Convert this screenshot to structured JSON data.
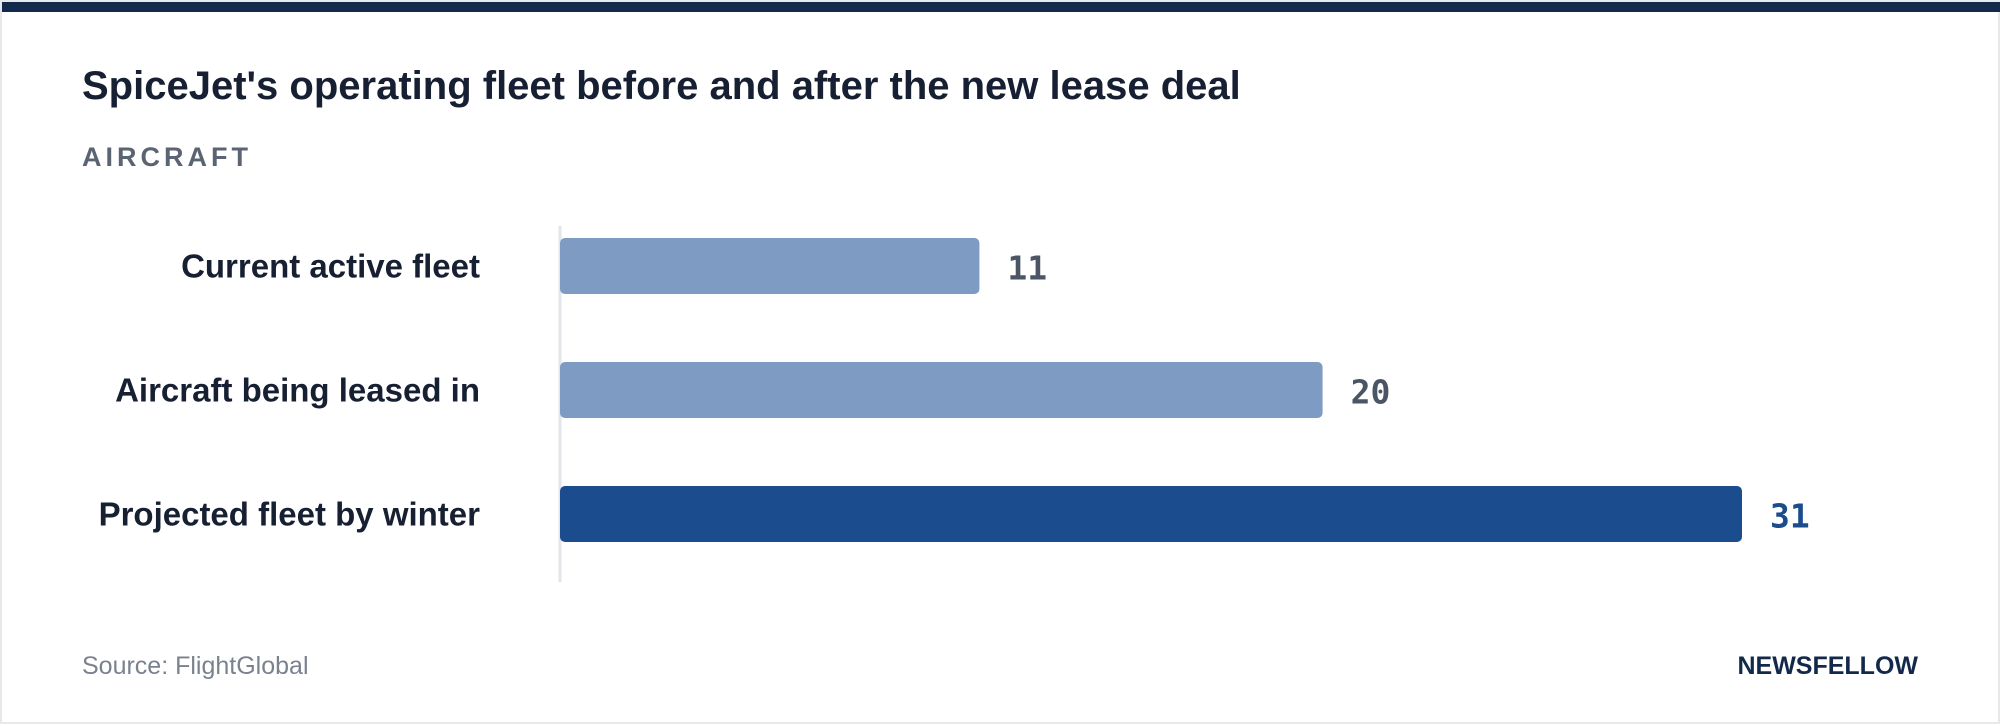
{
  "title": "SpiceJet's operating fleet before and after the new lease deal",
  "subtitle": "AIRCRAFT",
  "source": "Source: FlightGlobal",
  "brand": "NEWSFELLOW",
  "colors": {
    "bar_default": "#7d9bc3",
    "bar_highlight": "#1b4d8e",
    "value_default": "#4b5565",
    "value_highlight": "#1b4d8e",
    "axis": "#e2e5ea",
    "top_bar": "#13294b"
  },
  "chart_data": {
    "type": "bar",
    "orientation": "horizontal",
    "categories": [
      "Current active fleet",
      "Aircraft being leased in",
      "Projected fleet by winter"
    ],
    "values": [
      11,
      20,
      31
    ],
    "value_labels": [
      "11",
      "20",
      "31"
    ],
    "highlight_index": 2,
    "title": "SpiceJet's operating fleet before and after the new lease deal",
    "subtitle": "AIRCRAFT",
    "xlim": [
      0,
      31
    ],
    "grid": false,
    "legend": "none"
  }
}
